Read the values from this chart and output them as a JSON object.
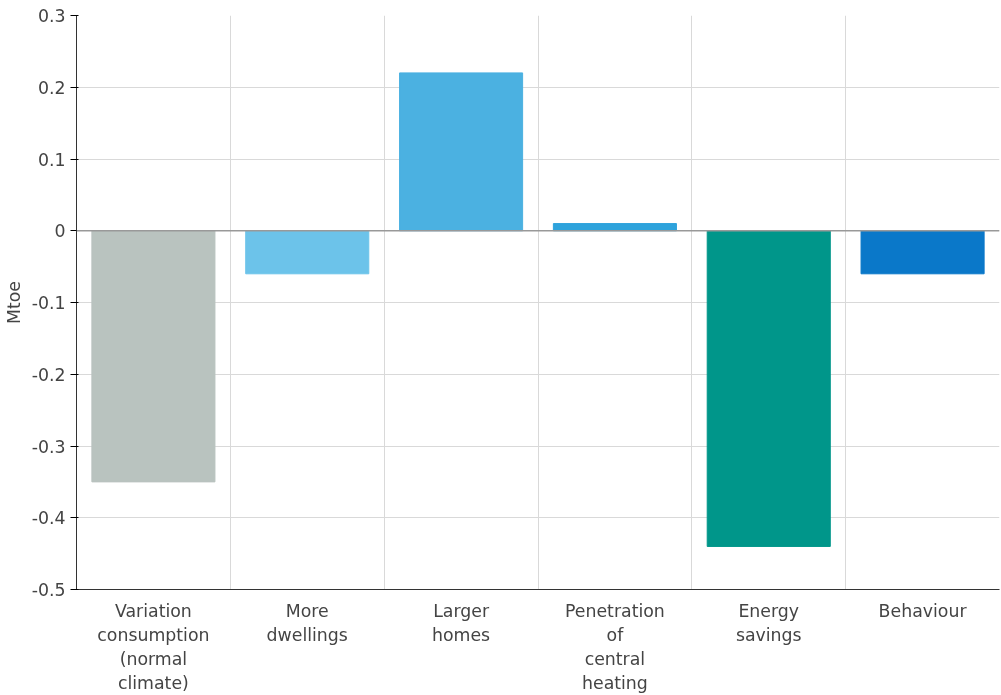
{
  "chart_data": {
    "type": "bar",
    "ylabel": "Mtoe",
    "categories": [
      "Variation\nconsumption\n(normal\nclimate)",
      "More\ndwellings",
      "Larger\nhomes",
      "Penetration\nof\ncentral\nheating",
      "Energy\nsavings",
      "Behaviour"
    ],
    "values": [
      -0.35,
      -0.06,
      0.22,
      0.01,
      -0.44,
      -0.06
    ],
    "colors": [
      "#b9c3bf",
      "#6cc3ea",
      "#4bb1e1",
      "#2ea3dc",
      "#00968a",
      "#0a78c9"
    ],
    "ylim": [
      -0.5,
      0.3
    ],
    "yticks": [
      -0.5,
      -0.4,
      -0.3,
      -0.2,
      -0.1,
      0,
      0.1,
      0.2,
      0.3
    ],
    "ref_lines": [
      {
        "axis": "y",
        "value": 0,
        "color": "#999999"
      }
    ],
    "grid": true
  }
}
